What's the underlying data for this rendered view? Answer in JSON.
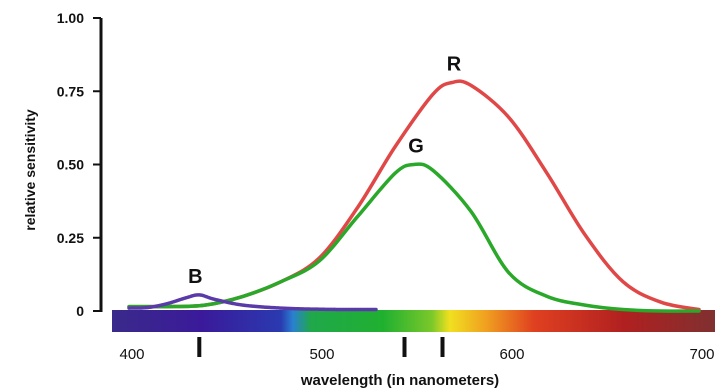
{
  "chart_data": {
    "type": "line",
    "title": "",
    "xlabel": "wavelength (in nanometers)",
    "ylabel": "relative sensitivity",
    "xlim": [
      400,
      715
    ],
    "ylim": [
      0,
      1.0
    ],
    "x_ticks": [
      400,
      500,
      600,
      700
    ],
    "x_tick_labels": [
      "400",
      "500",
      "600",
      "700"
    ],
    "y_ticks": [
      0,
      0.25,
      0.5,
      0.75,
      1.0
    ],
    "y_tick_labels": [
      "0",
      "0.25",
      "0.50",
      "0.75",
      "1.00"
    ],
    "marker_wavelengths": [
      437,
      545,
      565
    ],
    "spectrum_bar": true,
    "series": [
      {
        "name": "R",
        "color": "#e04848",
        "x": [
          400,
          420,
          440,
          460,
          480,
          500,
          520,
          540,
          560,
          570,
          580,
          600,
          620,
          640,
          660,
          680,
          700
        ],
        "y": [
          0.015,
          0.015,
          0.02,
          0.05,
          0.1,
          0.18,
          0.35,
          0.56,
          0.74,
          0.78,
          0.77,
          0.66,
          0.47,
          0.26,
          0.1,
          0.03,
          0.005
        ]
      },
      {
        "name": "G",
        "color": "#2aa82a",
        "x": [
          400,
          420,
          440,
          460,
          480,
          500,
          520,
          540,
          550,
          560,
          580,
          600,
          620,
          640,
          660,
          680,
          700
        ],
        "y": [
          0.015,
          0.015,
          0.02,
          0.05,
          0.1,
          0.17,
          0.32,
          0.47,
          0.5,
          0.48,
          0.34,
          0.13,
          0.05,
          0.02,
          0.005,
          0.0,
          0.0
        ]
      },
      {
        "name": "B",
        "color": "#5a3aa8",
        "x": [
          400,
          410,
          420,
          430,
          437,
          445,
          460,
          480,
          500,
          520,
          530
        ],
        "y": [
          0.01,
          0.012,
          0.025,
          0.045,
          0.055,
          0.04,
          0.02,
          0.01,
          0.006,
          0.005,
          0.005
        ]
      }
    ]
  }
}
